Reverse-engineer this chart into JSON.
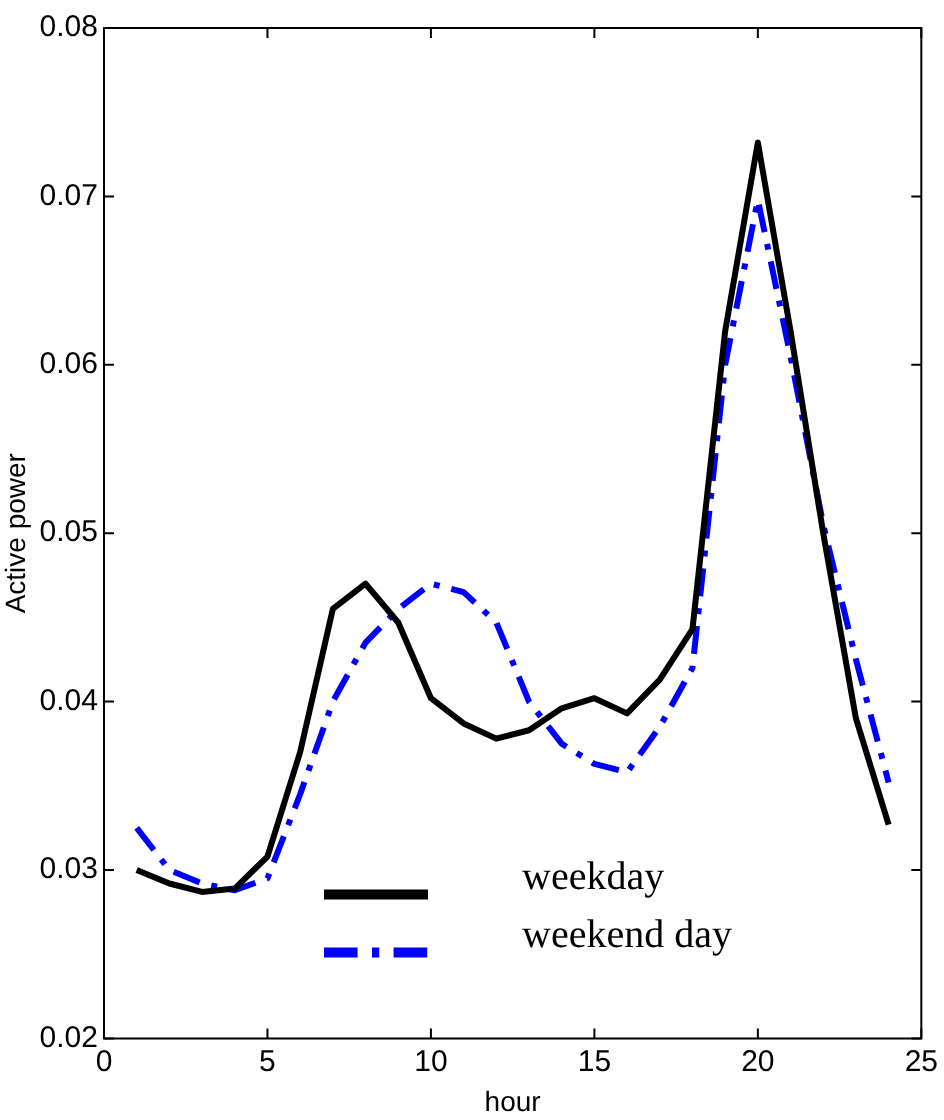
{
  "chart_data": {
    "type": "line",
    "xlabel": "hour",
    "ylabel": "Active power",
    "x": [
      1,
      2,
      3,
      4,
      5,
      6,
      7,
      8,
      9,
      10,
      11,
      12,
      13,
      14,
      15,
      16,
      17,
      18,
      19,
      20,
      21,
      22,
      23,
      24
    ],
    "series": [
      {
        "name": "weekday",
        "color": "#000000",
        "line_style": "solid",
        "values": [
          0.03,
          0.0292,
          0.0287,
          0.0289,
          0.0308,
          0.037,
          0.0455,
          0.047,
          0.0447,
          0.0402,
          0.0387,
          0.0378,
          0.0383,
          0.0396,
          0.0402,
          0.0393,
          0.0413,
          0.0443,
          0.062,
          0.0732,
          0.062,
          0.05,
          0.039,
          0.0327
        ]
      },
      {
        "name": "weekend day",
        "color": "#0000ff",
        "line_style": "dashdot",
        "values": [
          0.0325,
          0.03,
          0.0292,
          0.0288,
          0.0295,
          0.0345,
          0.04,
          0.0435,
          0.0455,
          0.047,
          0.0465,
          0.0447,
          0.04,
          0.0375,
          0.0363,
          0.0358,
          0.0385,
          0.042,
          0.06,
          0.0698,
          0.0605,
          0.0505,
          0.0425,
          0.0352
        ]
      }
    ],
    "xlim": [
      0,
      25
    ],
    "xticks": [
      0,
      5,
      10,
      15,
      20,
      25
    ],
    "ylim": [
      0.02,
      0.08
    ],
    "yticks": [
      0.02,
      0.03,
      0.04,
      0.05,
      0.06,
      0.07,
      0.08
    ],
    "grid": false,
    "legend": "bottom",
    "marker": "none"
  }
}
